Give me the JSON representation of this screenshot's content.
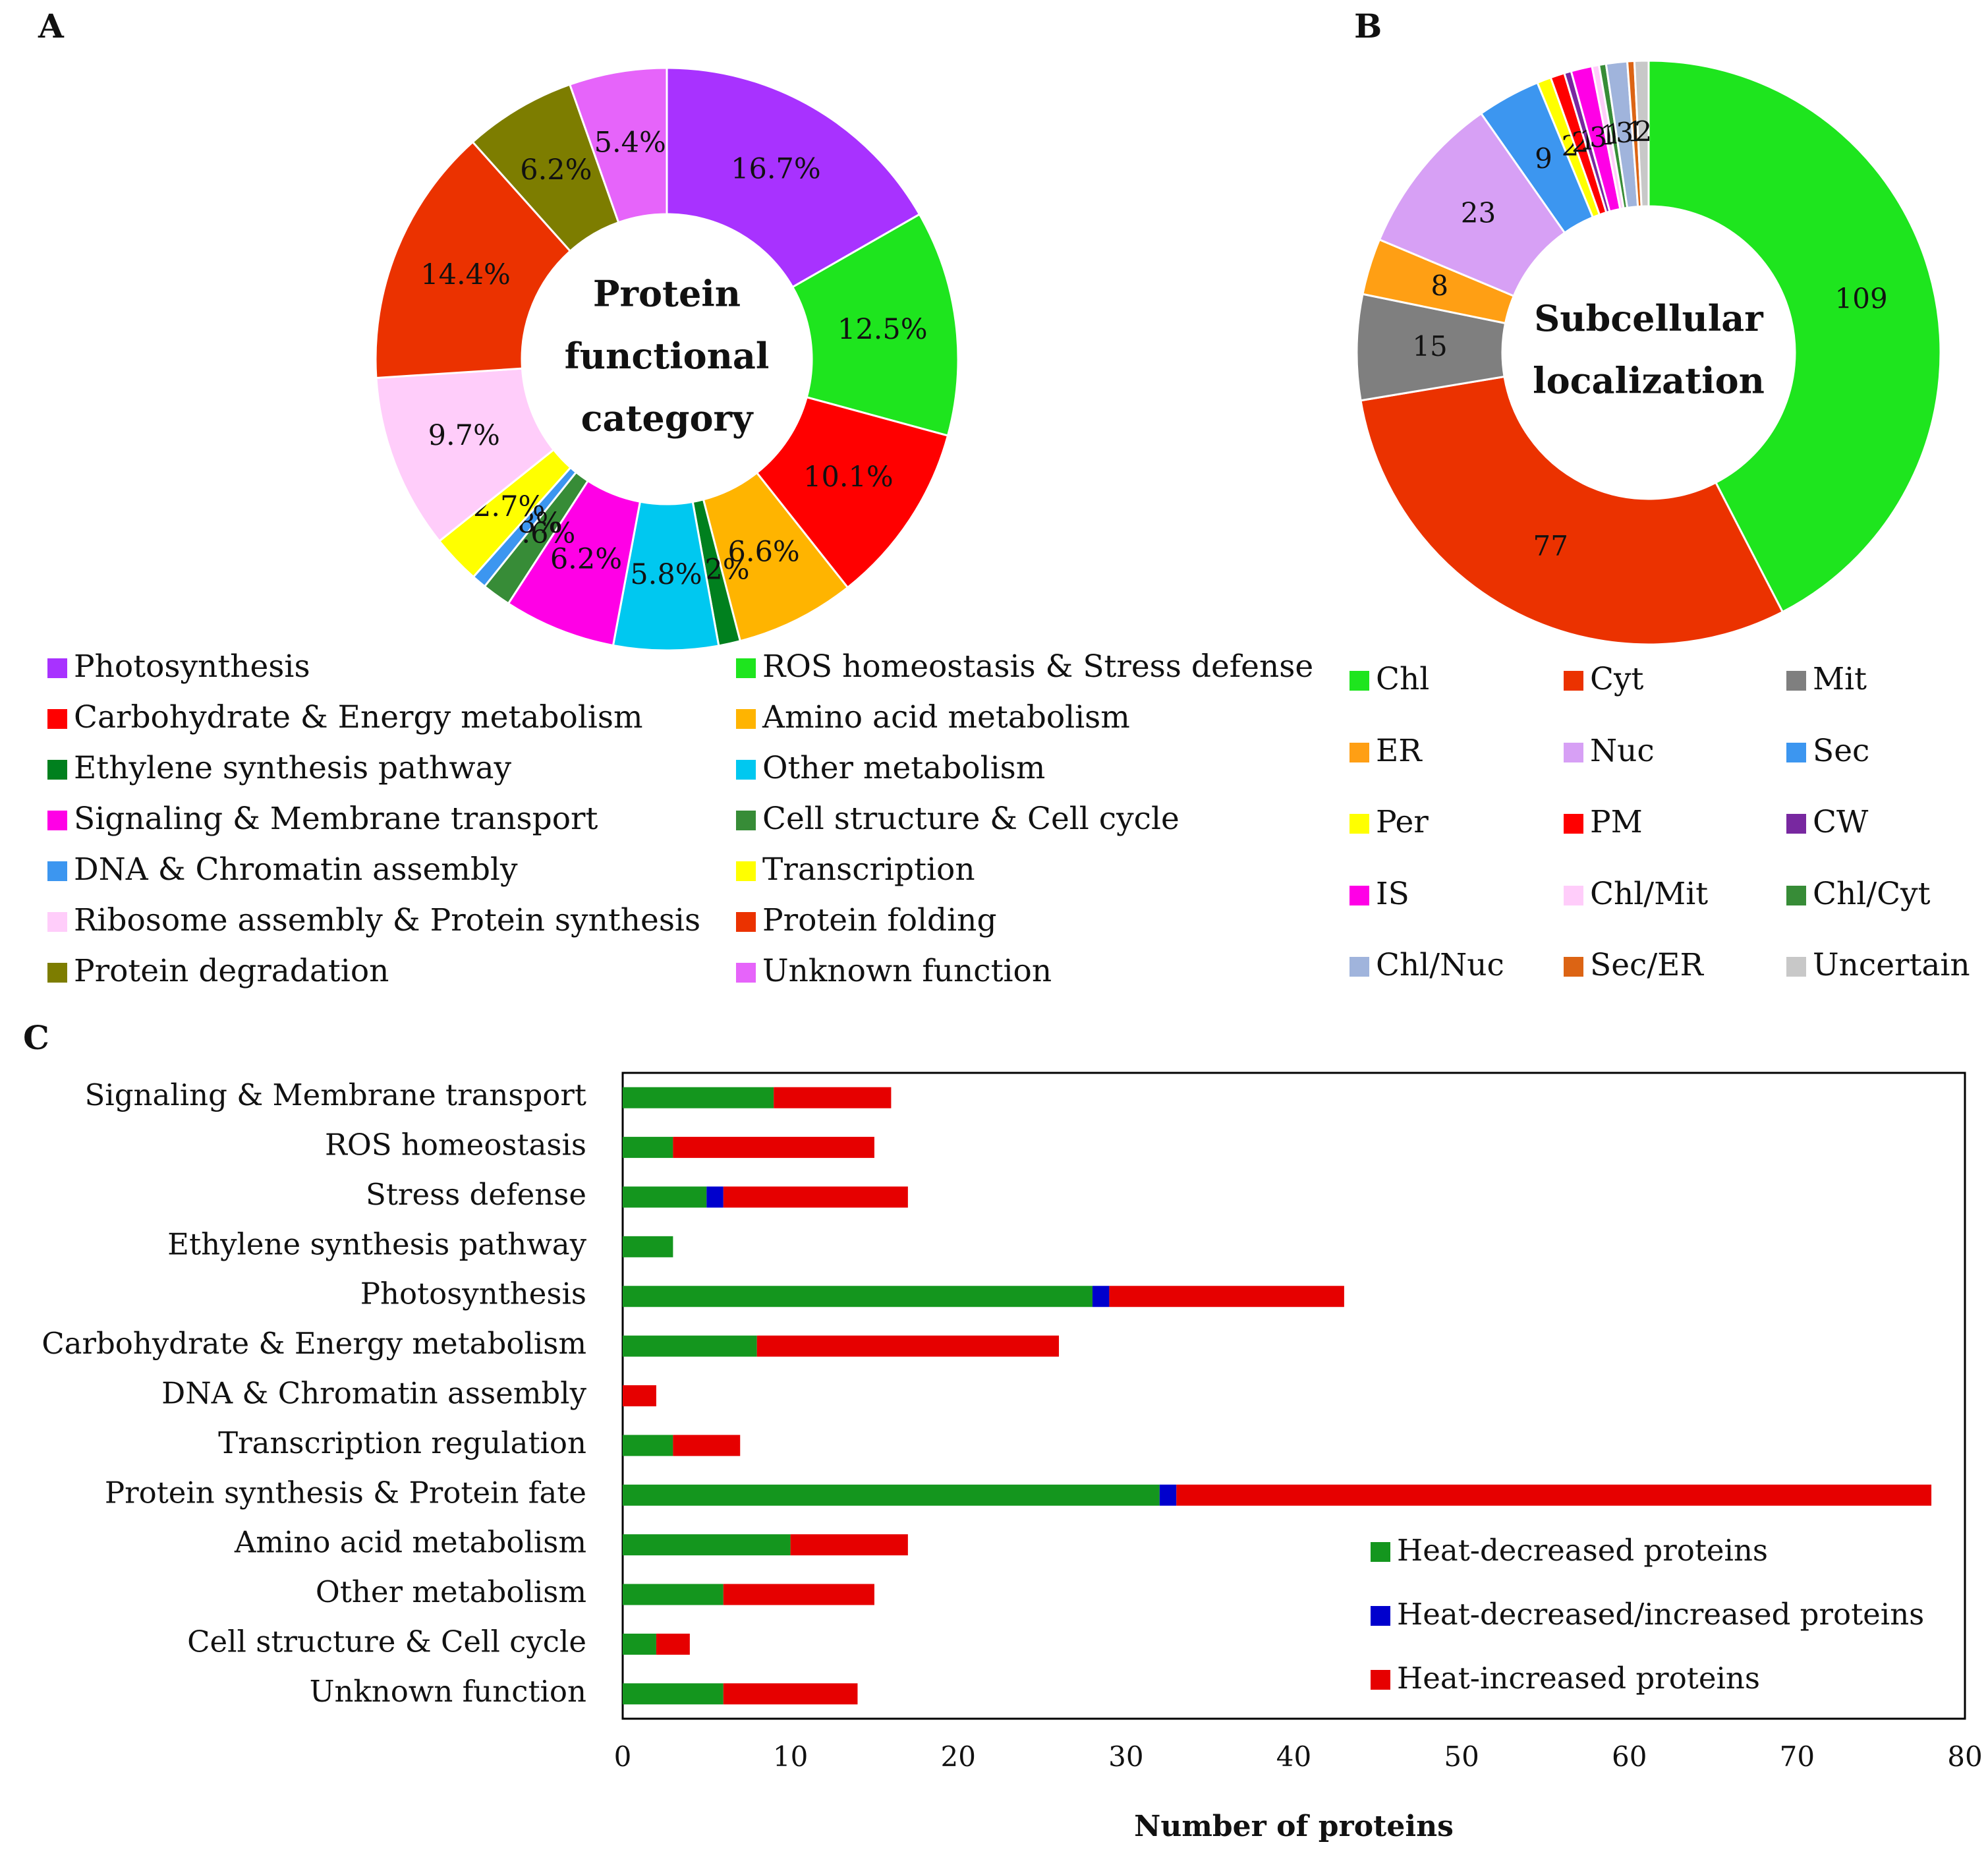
{
  "panels": {
    "a": "A",
    "b": "B",
    "c": "C"
  },
  "chart_data": [
    {
      "type": "pie",
      "id": "A",
      "title_lines": [
        "Protein",
        "functional",
        "category"
      ],
      "slices": [
        {
          "label": "Photosynthesis",
          "value": 16.7,
          "text": "16.7%",
          "color": "#a832ff"
        },
        {
          "label": "ROS homeostasis & Stress defense",
          "value": 12.5,
          "text": "12.5%",
          "color": "#1ee51e"
        },
        {
          "label": "Carbohydrate & Energy metabolism",
          "value": 10.1,
          "text": "10.1%",
          "color": "#ff0000"
        },
        {
          "label": "Amino acid metabolism",
          "value": 6.6,
          "text": "6.6%",
          "color": "#ffb400"
        },
        {
          "label": "Ethylene synthesis pathway",
          "value": 1.2,
          "text": "1.2%",
          "color": "#00801e"
        },
        {
          "label": "Other metabolism",
          "value": 5.8,
          "text": "5.8%",
          "color": "#00c8f0"
        },
        {
          "label": "Signaling & Membrane transport",
          "value": 6.2,
          "text": "6.2%",
          "color": "#ff00e6"
        },
        {
          "label": "Cell structure & Cell cycle",
          "value": 1.6,
          "text": "1.6%",
          "color": "#378c37"
        },
        {
          "label": "DNA & Chromatin assembly",
          "value": 0.8,
          "text": "0.8%",
          "color": "#3c96f0"
        },
        {
          "label": "Transcription",
          "value": 2.7,
          "text": "2.7%",
          "color": "#ffff00"
        },
        {
          "label": "Ribosome assembly & Protein synthesis",
          "value": 9.7,
          "text": "9.7%",
          "color": "#ffcdfa"
        },
        {
          "label": "Protein folding",
          "value": 14.4,
          "text": "14.4%",
          "color": "#eb3200"
        },
        {
          "label": "Protein degradation",
          "value": 6.2,
          "text": "6.2%",
          "color": "#7d7d00"
        },
        {
          "label": "Unknown function",
          "value": 5.4,
          "text": "5.4%",
          "color": "#e664fa"
        }
      ],
      "legend_order": [
        "Photosynthesis",
        "ROS homeostasis & Stress defense",
        "Carbohydrate & Energy metabolism",
        "Amino acid metabolism",
        "Ethylene synthesis pathway",
        "Other metabolism",
        "Signaling & Membrane transport",
        "Cell structure & Cell cycle",
        "DNA & Chromatin assembly",
        "Transcription",
        "Ribosome assembly & Protein synthesis",
        "Protein folding",
        "Protein degradation",
        "Unknown function"
      ]
    },
    {
      "type": "pie",
      "id": "B",
      "title_lines": [
        "Subcellular",
        "localization"
      ],
      "slices": [
        {
          "label": "Chl",
          "value": 109,
          "text": "109",
          "color": "#1ee51e"
        },
        {
          "label": "Cyt",
          "value": 77,
          "text": "77",
          "color": "#eb3200"
        },
        {
          "label": "Mit",
          "value": 15,
          "text": "15",
          "color": "#7f7f7f"
        },
        {
          "label": "ER",
          "value": 8,
          "text": "8",
          "color": "#ff9f14"
        },
        {
          "label": "Nuc",
          "value": 23,
          "text": "23",
          "color": "#d7a0f5"
        },
        {
          "label": "Sec",
          "value": 9,
          "text": "9",
          "color": "#3c96f0"
        },
        {
          "label": "Per",
          "value": 2,
          "text": "2",
          "color": "#ffff00"
        },
        {
          "label": "PM",
          "value": 2,
          "text": "2",
          "color": "#ff0000"
        },
        {
          "label": "CW",
          "value": 1,
          "text": "1",
          "color": "#7828a0"
        },
        {
          "label": "IS",
          "value": 3,
          "text": "3",
          "color": "#ff00e6"
        },
        {
          "label": "Chl/Mit",
          "value": 1,
          "text": "1",
          "color": "#ffcdfa"
        },
        {
          "label": "Chl/Cyt",
          "value": 1,
          "text": "1",
          "color": "#378c37"
        },
        {
          "label": "Chl/Nuc",
          "value": 3,
          "text": "3",
          "color": "#a0b4dc"
        },
        {
          "label": "Sec/ER",
          "value": 1,
          "text": "1",
          "color": "#dc6414"
        },
        {
          "label": "Uncertain",
          "value": 2,
          "text": "2",
          "color": "#c8c8c8"
        }
      ],
      "legend_order": [
        "Chl",
        "Cyt",
        "Mit",
        "ER",
        "Nuc",
        "Sec",
        "Per",
        "PM",
        "CW",
        "IS",
        "Chl/Mit",
        "Chl/Cyt",
        "Chl/Nuc",
        "Sec/ER",
        "Uncertain"
      ]
    },
    {
      "type": "bar",
      "orientation": "horizontal",
      "stacked": true,
      "id": "C",
      "categories": [
        "Signaling & Membrane transport",
        "ROS homeostasis ",
        "Stress defense",
        "Ethylene synthesis pathway",
        "Photosynthesis",
        "Carbohydrate & Energy metabolism",
        "DNA & Chromatin assembly",
        "Transcription regulation",
        "Protein synthesis & Protein fate",
        "Amino acid metabolism",
        "Other metabolism",
        "Cell structure & Cell cycle",
        "Unknown function"
      ],
      "series": [
        {
          "name": "Heat-decreased proteins",
          "color": "#14961e",
          "values": [
            9,
            3,
            5,
            3,
            28,
            8,
            0,
            3,
            32,
            10,
            6,
            2,
            6
          ]
        },
        {
          "name": "Heat-decreased/increased proteins",
          "color": "#0000cd",
          "values": [
            0,
            0,
            1,
            0,
            1,
            0,
            0,
            0,
            1,
            0,
            0,
            0,
            0
          ]
        },
        {
          "name": "Heat-increased proteins",
          "color": "#e60000",
          "values": [
            7,
            12,
            11,
            0,
            14,
            18,
            2,
            4,
            45,
            7,
            9,
            2,
            8
          ]
        }
      ],
      "xlim": [
        0,
        80
      ],
      "xticks": [
        "0",
        "10",
        "20",
        "30",
        "40",
        "50",
        "60",
        "70",
        "80"
      ],
      "xlabel": "Number of proteins",
      "ylabel": "",
      "grid": false,
      "legend_position": "bottom-right"
    }
  ]
}
